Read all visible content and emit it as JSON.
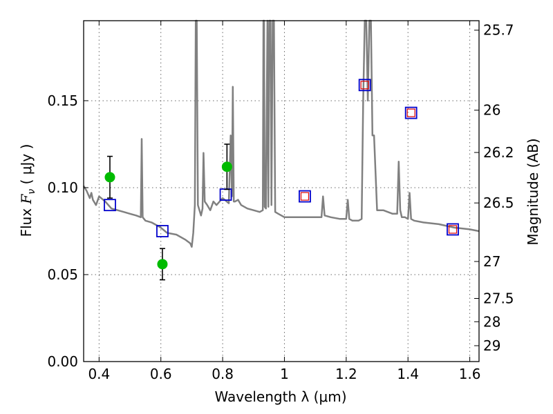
{
  "chart_data": {
    "type": "scatter",
    "xlabel": "Wavelength  λ (μm)",
    "ylabel_prefix": "Flux ",
    "ylabel_symbol": "F",
    "ylabel_symbol_sub": "ν",
    "ylabel_suffix": " ( μJy )",
    "y2label": "Magnitude (AB)",
    "xlim": [
      0.35,
      1.63
    ],
    "ylim": [
      0.0,
      0.196
    ],
    "grid": true,
    "x_ticks": [
      {
        "value": 0.4,
        "label": "0.4"
      },
      {
        "value": 0.6,
        "label": "0.6"
      },
      {
        "value": 0.8,
        "label": "0.8"
      },
      {
        "value": 1.0,
        "label": "1"
      },
      {
        "value": 1.2,
        "label": "1.2"
      },
      {
        "value": 1.4,
        "label": "1.4"
      },
      {
        "value": 1.6,
        "label": "1.6"
      }
    ],
    "y_ticks": [
      {
        "value": 0.0,
        "label": "0.00"
      },
      {
        "value": 0.05,
        "label": "0.05"
      },
      {
        "value": 0.1,
        "label": "0.10"
      },
      {
        "value": 0.15,
        "label": "0.15"
      }
    ],
    "mag_ticks": [
      {
        "label": "25.7",
        "mag": 25.7
      },
      {
        "label": "26",
        "mag": 26.0
      },
      {
        "label": "26.2",
        "mag": 26.2
      },
      {
        "label": "26.5",
        "mag": 26.5
      },
      {
        "label": "27",
        "mag": 27.0
      },
      {
        "label": "27.5",
        "mag": 27.5
      },
      {
        "label": "28",
        "mag": 28.0
      },
      {
        "label": "29",
        "mag": 29.0
      }
    ],
    "colors": {
      "model": "#808080",
      "observed": "#00bb00",
      "model_bands": "#0000cc",
      "model_bands_inner": "#dd0000",
      "error_bar": "#000000",
      "grid": "#666666"
    },
    "series": [
      {
        "kind": "model_spectrum",
        "x": [
          0.35,
          0.36,
          0.37,
          0.375,
          0.38,
          0.39,
          0.4,
          0.42,
          0.44,
          0.46,
          0.48,
          0.5,
          0.52,
          0.535,
          0.538,
          0.541,
          0.55,
          0.57,
          0.6,
          0.62,
          0.65,
          0.68,
          0.695,
          0.7,
          0.705,
          0.71,
          0.713,
          0.716,
          0.72,
          0.73,
          0.735,
          0.738,
          0.742,
          0.75,
          0.76,
          0.77,
          0.78,
          0.8,
          0.82,
          0.826,
          0.83,
          0.833,
          0.836,
          0.84,
          0.85,
          0.86,
          0.88,
          0.9,
          0.92,
          0.93,
          0.932,
          0.934,
          0.936,
          0.94,
          0.945,
          0.948,
          0.951,
          0.955,
          0.958,
          0.962,
          0.966,
          0.97,
          0.98,
          1.0,
          1.02,
          1.05,
          1.08,
          1.1,
          1.12,
          1.125,
          1.13,
          1.15,
          1.18,
          1.2,
          1.205,
          1.21,
          1.22,
          1.24,
          1.25,
          1.255,
          1.26,
          1.265,
          1.27,
          1.275,
          1.28,
          1.285,
          1.29,
          1.3,
          1.32,
          1.35,
          1.365,
          1.37,
          1.375,
          1.38,
          1.39,
          1.4,
          1.405,
          1.41,
          1.42,
          1.45,
          1.5,
          1.55,
          1.6,
          1.63
        ],
        "y": [
          0.101,
          0.098,
          0.094,
          0.097,
          0.093,
          0.09,
          0.095,
          0.092,
          0.088,
          0.087,
          0.086,
          0.085,
          0.084,
          0.083,
          0.128,
          0.083,
          0.081,
          0.08,
          0.077,
          0.074,
          0.073,
          0.07,
          0.068,
          0.066,
          0.074,
          0.09,
          0.2,
          0.2,
          0.09,
          0.084,
          0.088,
          0.12,
          0.092,
          0.09,
          0.087,
          0.092,
          0.09,
          0.094,
          0.091,
          0.13,
          0.095,
          0.158,
          0.092,
          0.092,
          0.093,
          0.09,
          0.088,
          0.087,
          0.086,
          0.087,
          0.2,
          0.2,
          0.089,
          0.088,
          0.2,
          0.089,
          0.2,
          0.2,
          0.09,
          0.2,
          0.2,
          0.086,
          0.085,
          0.083,
          0.083,
          0.083,
          0.083,
          0.083,
          0.083,
          0.095,
          0.084,
          0.083,
          0.082,
          0.082,
          0.093,
          0.082,
          0.081,
          0.081,
          0.082,
          0.15,
          0.2,
          0.2,
          0.15,
          0.2,
          0.2,
          0.13,
          0.13,
          0.087,
          0.087,
          0.085,
          0.085,
          0.115,
          0.087,
          0.083,
          0.083,
          0.082,
          0.097,
          0.082,
          0.081,
          0.08,
          0.079,
          0.077,
          0.076,
          0.075
        ]
      },
      {
        "kind": "observed",
        "x": [
          0.435,
          0.605,
          0.814
        ],
        "y": [
          0.106,
          0.056,
          0.112
        ],
        "yerr": [
          0.012,
          0.009,
          0.013
        ]
      },
      {
        "kind": "model_bands",
        "x": [
          0.435,
          0.605,
          0.81,
          1.066,
          1.26,
          1.41,
          1.545
        ],
        "y": [
          0.09,
          0.075,
          0.096,
          0.095,
          0.159,
          0.143,
          0.076
        ],
        "inner": [
          false,
          false,
          false,
          true,
          true,
          true,
          true
        ]
      }
    ]
  }
}
